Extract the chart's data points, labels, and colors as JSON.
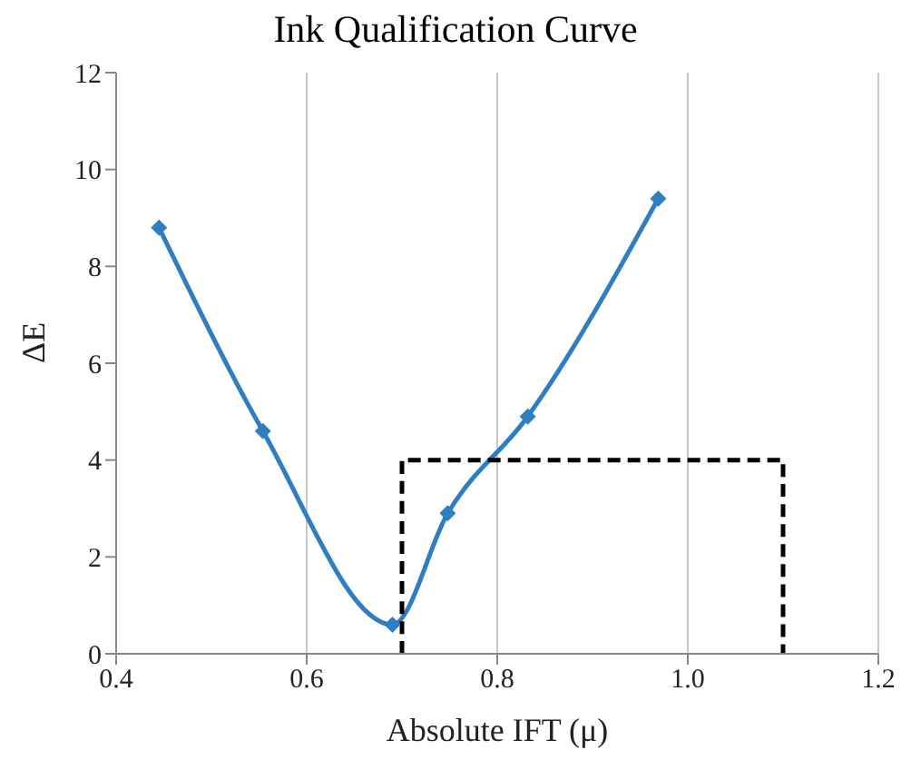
{
  "chart_data": {
    "type": "line",
    "title": "Ink Qualification Curve",
    "xlabel": "Absolute IFT (μ)",
    "ylabel": "ΔE",
    "series": [
      {
        "color": "#2e7ec1",
        "marker": "diamond",
        "line_style": "solid",
        "x": [
          0.445,
          0.554,
          0.69,
          0.748,
          0.832,
          0.969
        ],
        "values": [
          8.8,
          4.6,
          0.6,
          2.9,
          4.9,
          9.4
        ]
      },
      {
        "color": "#000000",
        "marker": "none",
        "line_style": "dashed",
        "x": [
          0.7,
          0.7,
          1.1,
          1.1
        ],
        "values": [
          0,
          4,
          4,
          0
        ]
      }
    ],
    "xlim": [
      0.4,
      1.2
    ],
    "xticks": [
      0.4,
      0.6,
      0.8,
      {
        "value": 1,
        "label": "1.0"
      },
      1.2
    ],
    "ylim": [
      0,
      12
    ],
    "yticks": [
      0,
      2,
      4,
      6,
      8,
      10,
      12
    ],
    "grid": "x"
  }
}
